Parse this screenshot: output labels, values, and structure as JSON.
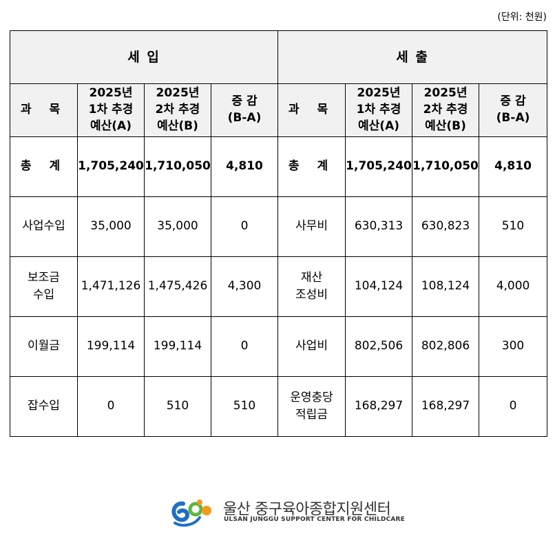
{
  "unit_label": "(단위: 천원)",
  "sections": {
    "income": "세 입",
    "expense": "세 출"
  },
  "headers": {
    "subject": "과 목",
    "col_a_1": "2025년",
    "col_a_2": "1차 추경",
    "col_a_3": "예산(A)",
    "col_b_1": "2025년",
    "col_b_2": "2차 추경",
    "col_b_3": "예산(B)",
    "diff_1": "증 감",
    "diff_2": "(B-A)"
  },
  "total": {
    "income": {
      "label": "총 계",
      "a": "1,705,240",
      "b": "1,710,050",
      "diff": "4,810"
    },
    "expense": {
      "label": "총 계",
      "a": "1,705,240",
      "b": "1,710,050",
      "diff": "4,810"
    }
  },
  "rows": [
    {
      "in_l1": "사업수입",
      "in_l2": "",
      "in_a": "35,000",
      "in_b": "35,000",
      "in_diff": "0",
      "ex_l1": "사무비",
      "ex_l2": "",
      "ex_a": "630,313",
      "ex_b": "630,823",
      "ex_diff": "510"
    },
    {
      "in_l1": "보조금",
      "in_l2": "수입",
      "in_a": "1,471,126",
      "in_b": "1,475,426",
      "in_diff": "4,300",
      "ex_l1": "재산",
      "ex_l2": "조성비",
      "ex_a": "104,124",
      "ex_b": "108,124",
      "ex_diff": "4,000"
    },
    {
      "in_l1": "이월금",
      "in_l2": "",
      "in_a": "199,114",
      "in_b": "199,114",
      "in_diff": "0",
      "ex_l1": "사업비",
      "ex_l2": "",
      "ex_a": "802,506",
      "ex_b": "802,806",
      "ex_diff": "300"
    },
    {
      "in_l1": "잡수입",
      "in_l2": "",
      "in_a": "0",
      "in_b": "510",
      "in_diff": "510",
      "ex_l1": "운영충당",
      "ex_l2": "적립금",
      "ex_a": "168,297",
      "ex_b": "168,297",
      "ex_diff": "0"
    }
  ],
  "logo": {
    "name_ko": "울산 중구육아종합지원센터",
    "name_en": "ULSAN JUNGGU SUPPORT CENTER FOR CHILDCARE",
    "colors": {
      "blue": "#1f6fc5",
      "green": "#5fb63a",
      "orange": "#f39a1e"
    }
  }
}
